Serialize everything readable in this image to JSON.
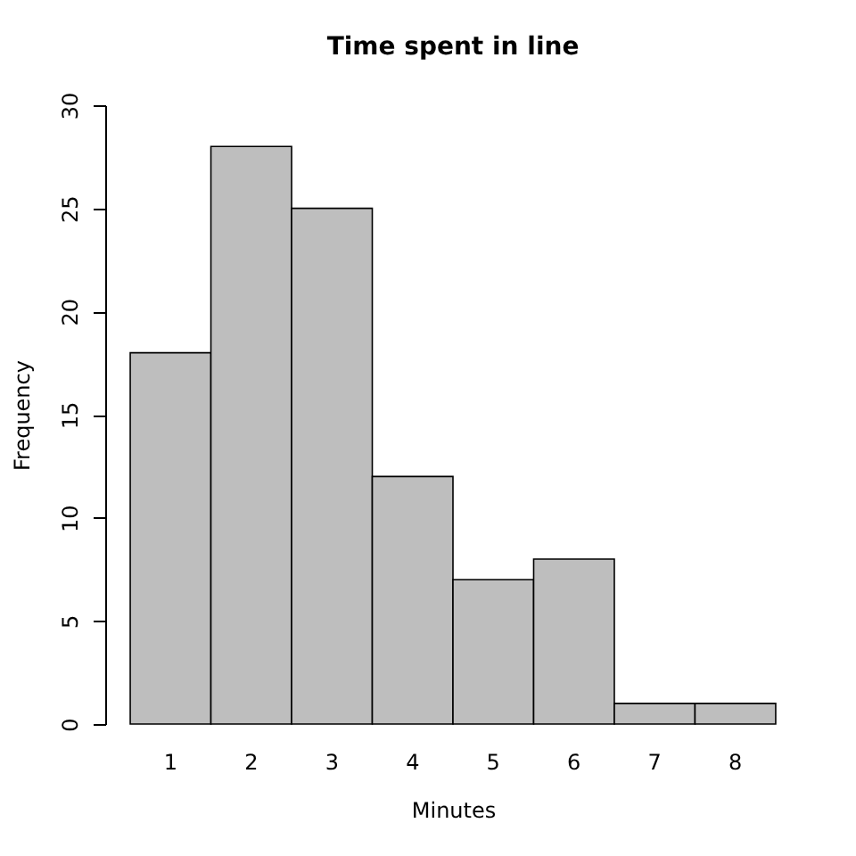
{
  "chart_data": {
    "type": "bar",
    "title": "Time spent in line",
    "xlabel": "Minutes",
    "ylabel": "Frequency",
    "categories": [
      "1",
      "2",
      "3",
      "4",
      "5",
      "6",
      "7",
      "8"
    ],
    "values": [
      18,
      28,
      25,
      12,
      7,
      8,
      1,
      1
    ],
    "color": "#bebebe",
    "ylim": [
      0,
      30
    ],
    "yticks": [
      0,
      5,
      10,
      15,
      20,
      25,
      30
    ]
  }
}
